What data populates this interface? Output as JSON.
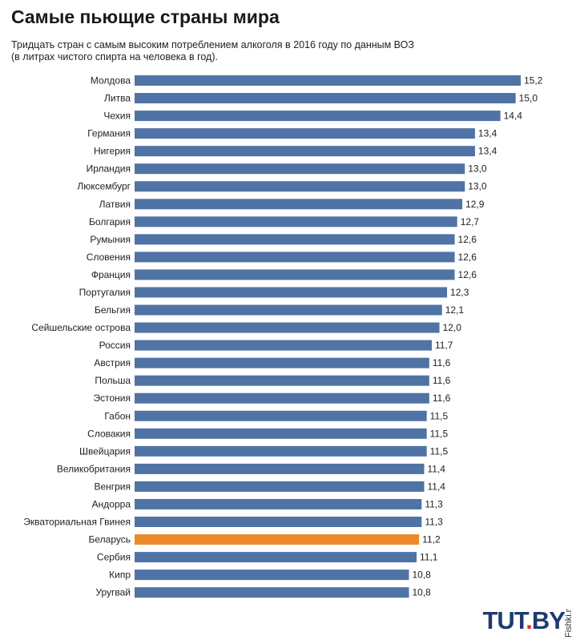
{
  "header": {
    "title": "Самые пьющие страны мира",
    "subtitle_line1": "Тридцать стран с самым высоким потреблением алкоголя в 2016 году по данным ВОЗ",
    "subtitle_line2": "(в литрах чистого спирта на человека в год)."
  },
  "chart_data": {
    "type": "bar",
    "orientation": "horizontal",
    "title": "Самые пьющие страны мира",
    "categories": [
      "Молдова",
      "Литва",
      "Чехия",
      "Германия",
      "Нигерия",
      "Ирландия",
      "Люксембург",
      "Латвия",
      "Болгария",
      "Румыния",
      "Словения",
      "Франция",
      "Португалия",
      "Бельгия",
      "Сейшельские острова",
      "Россия",
      "Австрия",
      "Польша",
      "Эстония",
      "Габон",
      "Словакия",
      "Швейцария",
      "Великобритания",
      "Венгрия",
      "Андорра",
      "Экваториальная Гвинея",
      "Беларусь",
      "Сербия",
      "Кипр",
      "Уругвай"
    ],
    "values": [
      15.2,
      15.0,
      14.4,
      13.4,
      13.4,
      13.0,
      13.0,
      12.9,
      12.7,
      12.6,
      12.6,
      12.6,
      12.3,
      12.1,
      12.0,
      11.7,
      11.6,
      11.6,
      11.6,
      11.5,
      11.5,
      11.5,
      11.4,
      11.4,
      11.3,
      11.3,
      11.2,
      11.1,
      10.8,
      10.8
    ],
    "value_labels": [
      "15,2",
      "15,0",
      "14,4",
      "13,4",
      "13,4",
      "13,0",
      "13,0",
      "12,9",
      "12,7",
      "12,6",
      "12,6",
      "12,6",
      "12,3",
      "12,1",
      "12,0",
      "11,7",
      "11,6",
      "11,6",
      "11,6",
      "11,5",
      "11,5",
      "11,5",
      "11,4",
      "11,4",
      "11,3",
      "11,3",
      "11,2",
      "11,1",
      "10,8",
      "10,8"
    ],
    "highlight": "Беларусь",
    "colors": {
      "bar": "#4f73a5",
      "highlight": "#ef8a2a"
    },
    "xlim": [
      0,
      15.2
    ],
    "grid": false
  },
  "branding": {
    "logo_main": "TUT",
    "logo_dot": ".",
    "logo_suffix": "BY",
    "watermark": "Fishki.net"
  }
}
